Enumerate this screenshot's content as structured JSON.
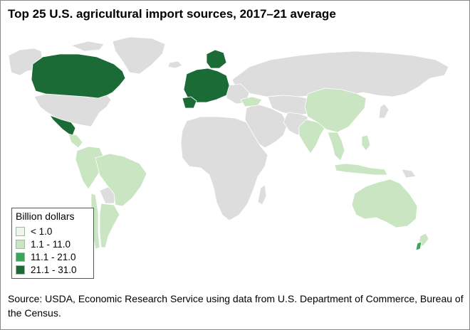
{
  "title": "Top 25 U.S. agricultural import sources, 2017–21 average",
  "legend": {
    "title": "Billion dollars",
    "items": [
      {
        "label": "< 1.0",
        "color": "#edf5ec"
      },
      {
        "label": "1.1 - 11.0",
        "color": "#c9e5c2"
      },
      {
        "label": "11.1 - 21.0",
        "color": "#3aa65a"
      },
      {
        "label": "21.1 - 31.0",
        "color": "#1b6b36"
      }
    ]
  },
  "colors": {
    "no_data": "#dddddd",
    "border": "#ffffff",
    "ocean": "#ffffff"
  },
  "source": "Source: USDA, Economic Research Service using data from U.S. Department of Commerce, Bureau of the Census."
}
